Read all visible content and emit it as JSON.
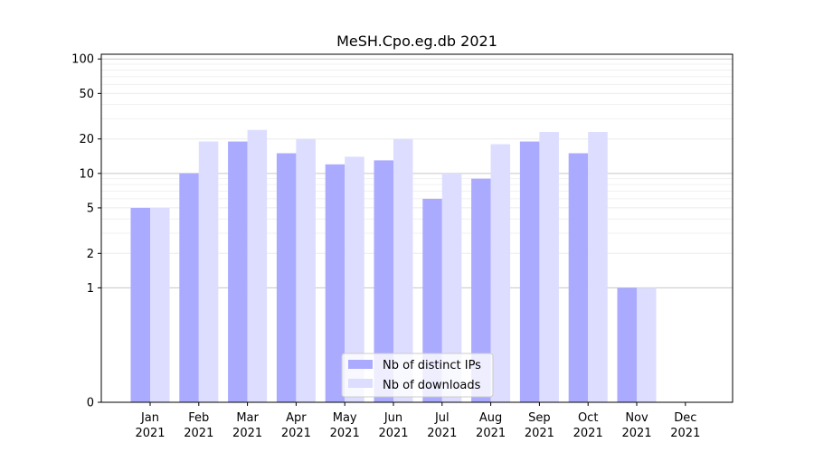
{
  "chart_data": {
    "type": "bar",
    "title": "MeSH.Cpo.eg.db 2021",
    "xlabel": "",
    "ylabel": "",
    "categories": [
      "Jan\n2021",
      "Feb\n2021",
      "Mar\n2021",
      "Apr\n2021",
      "May\n2021",
      "Jun\n2021",
      "Jul\n2021",
      "Aug\n2021",
      "Sep\n2021",
      "Oct\n2021",
      "Nov\n2021",
      "Dec\n2021"
    ],
    "month_labels": [
      "Jan",
      "Feb",
      "Mar",
      "Apr",
      "May",
      "Jun",
      "Jul",
      "Aug",
      "Sep",
      "Oct",
      "Nov",
      "Dec"
    ],
    "year_labels": [
      "2021",
      "2021",
      "2021",
      "2021",
      "2021",
      "2021",
      "2021",
      "2021",
      "2021",
      "2021",
      "2021",
      "2021"
    ],
    "series": [
      {
        "name": "Nb of distinct IPs",
        "color": "#aaaaff",
        "values": [
          5,
          10,
          19,
          15,
          12,
          13,
          6,
          9,
          19,
          15,
          1,
          0
        ]
      },
      {
        "name": "Nb of downloads",
        "color": "#ddddff",
        "values": [
          5,
          19,
          24,
          20,
          14,
          20,
          10,
          18,
          23,
          23,
          1,
          0
        ]
      }
    ],
    "y_scale": "symlog",
    "ylim": [
      0,
      110
    ],
    "y_ticks": [
      0,
      1,
      2,
      5,
      10,
      20,
      50,
      100
    ],
    "y_tick_labels": [
      "0",
      "1",
      "2",
      "5",
      "10",
      "20",
      "50",
      "100"
    ],
    "grid": true,
    "legend_position": "lower-center"
  }
}
